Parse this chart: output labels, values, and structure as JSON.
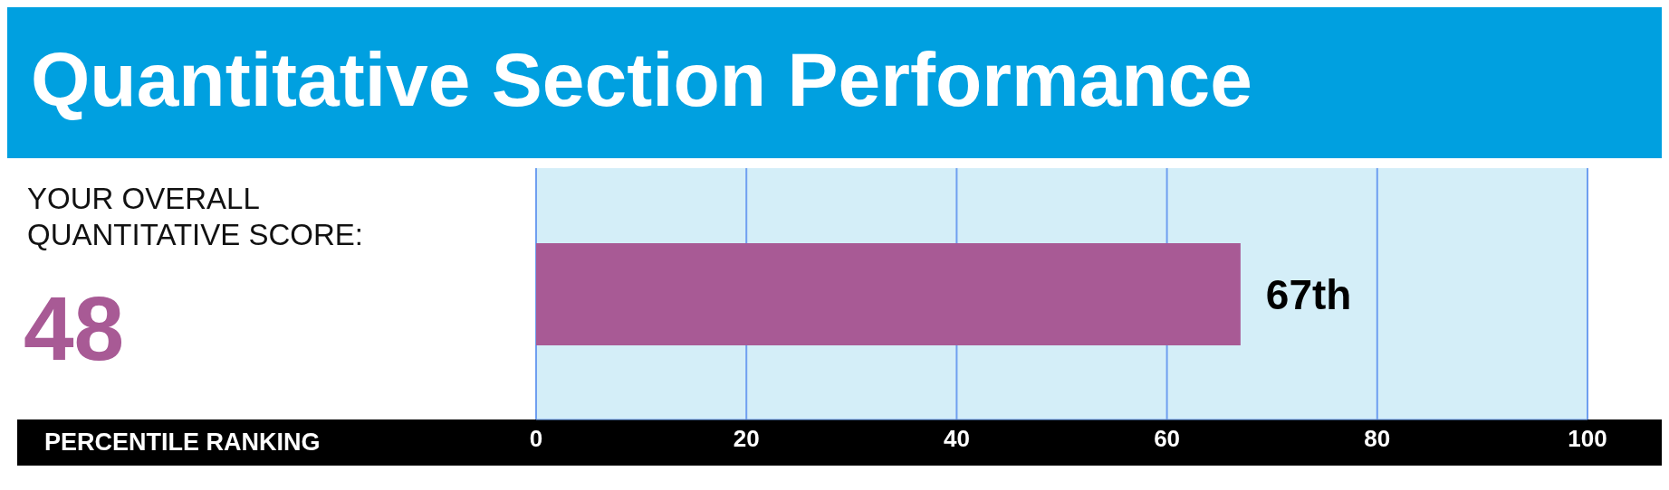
{
  "chart_data": {
    "type": "bar",
    "orientation": "horizontal",
    "title": "Quantitative Section Performance",
    "annotations": [
      "YOUR OVERALL QUANTITATIVE SCORE:",
      "48",
      "PERCENTILE RANKING"
    ],
    "categories": [
      null
    ],
    "values": [
      67
    ],
    "value_labels": [
      "67th"
    ],
    "color": "#a85a95",
    "xlim": [
      0,
      100
    ],
    "xticks": [
      0,
      20,
      40,
      60,
      80,
      100
    ],
    "grid": "x"
  }
}
